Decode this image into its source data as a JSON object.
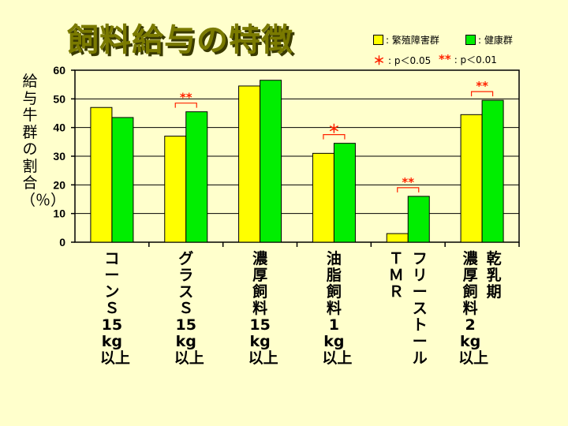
{
  "title": "飼料給与の特徴",
  "legend": {
    "series1": ": 繁殖障害群",
    "series2": ": 健康群",
    "sig1_mark": "＊",
    "sig1_text": ": p＜0.05",
    "sig2_mark": "**",
    "sig2_text": ": p＜0.01"
  },
  "colors": {
    "series1": "#ffff00",
    "series2": "#00ee00",
    "sig": "#ff2200",
    "background": "#ffffcc"
  },
  "chart_data": {
    "type": "bar",
    "ylabel": "給与牛群の割合（％）",
    "ylim": [
      0,
      60
    ],
    "yticks": [
      "0",
      "10",
      "20",
      "30",
      "40",
      "50",
      "60"
    ],
    "grid": true,
    "categories": [
      "コーンＳ\n15\nkg\n以上",
      "グラスＳ\n15\nkg\n以上",
      "濃\n厚\n飼\n料\n15\nkg\n以上",
      "油\n脂\n飼\n料\n1\nkg\n以上",
      "ＴＭＲ\nフリーストール",
      "濃\n厚\n飼\n料\n2\nkg\n以上\n乾乳期"
    ],
    "series": [
      {
        "name": "繁殖障害群",
        "values": [
          47,
          37,
          54.5,
          31,
          3,
          44.5
        ]
      },
      {
        "name": "健康群",
        "values": [
          43.5,
          45.5,
          56.5,
          34.5,
          16,
          49.5
        ]
      }
    ],
    "significance": [
      "",
      "**",
      "",
      "＊",
      "**",
      "**"
    ]
  }
}
